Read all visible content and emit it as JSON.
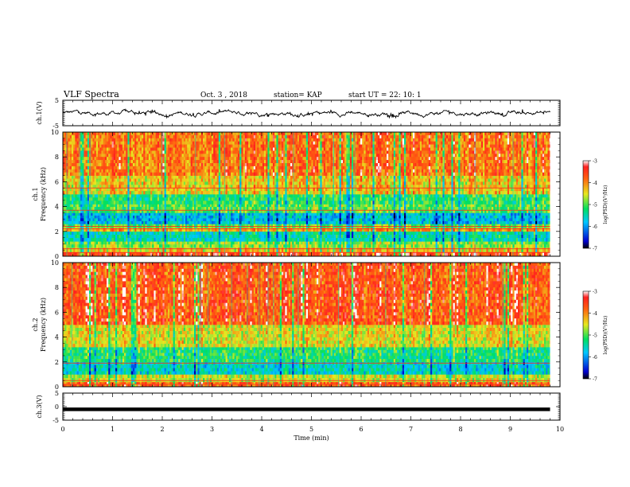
{
  "header": {
    "title": "VLF Spectra",
    "date": "Oct. 3 , 2018",
    "station": "station= KAP",
    "start": "start UT =  22: 10: 1"
  },
  "chart_data": [
    {
      "type": "line",
      "panel": "ch1-waveform",
      "ylabel": "ch.1(V)",
      "ylim": [
        -5,
        5
      ],
      "yticks": [
        "5",
        "-5"
      ],
      "xlim": [
        0,
        10
      ],
      "series": [
        {
          "values_range": [
            -1.8,
            1.5
          ],
          "mean": 0
        }
      ]
    },
    {
      "type": "heatmap",
      "panel": "ch1-spectrogram",
      "ylabel": "ch.1\nFrequency (kHz)",
      "ylabel_lines": [
        "ch.1",
        "Frequency (kHz)"
      ],
      "ylim": [
        0,
        10
      ],
      "yticks": [
        "0",
        "2",
        "4",
        "6",
        "8",
        "10"
      ],
      "xlim": [
        0,
        9.8
      ],
      "bands": [
        {
          "f0": 0.0,
          "f1": 0.35,
          "level": -3.6
        },
        {
          "f0": 0.35,
          "f1": 0.7,
          "level": -4.4
        },
        {
          "f0": 0.7,
          "f1": 1.2,
          "level": -4.8
        },
        {
          "f0": 1.2,
          "f1": 2.0,
          "level": -5.5
        },
        {
          "f0": 2.0,
          "f1": 2.3,
          "level": -4.2
        },
        {
          "f0": 2.3,
          "f1": 2.6,
          "level": -5.0
        },
        {
          "f0": 2.6,
          "f1": 3.5,
          "level": -5.8
        },
        {
          "f0": 3.5,
          "f1": 4.2,
          "level": -5.0
        },
        {
          "f0": 4.2,
          "f1": 5.0,
          "level": -5.2
        },
        {
          "f0": 5.0,
          "f1": 6.5,
          "level": -4.4
        },
        {
          "f0": 6.5,
          "f1": 10.0,
          "level": -3.9
        }
      ],
      "lines_kHz": [
        0.3,
        0.6,
        2.2,
        2.4,
        3.7,
        5.5
      ],
      "colorbar": {
        "min": -7,
        "max": -3,
        "ticks": [
          "-3",
          "-4",
          "-5",
          "-6",
          "-7"
        ],
        "label": "log(PSD)(V²/Hz)"
      }
    },
    {
      "type": "heatmap",
      "panel": "ch2-spectrogram",
      "ylabel": "ch.2\nFrequency (kHz)",
      "ylabel_lines": [
        "ch.2",
        "Frequency (kHz)"
      ],
      "ylim": [
        0,
        10
      ],
      "yticks": [
        "0",
        "2",
        "4",
        "6",
        "8",
        "10"
      ],
      "xlim": [
        0,
        9.8
      ],
      "bands": [
        {
          "f0": 0.0,
          "f1": 0.4,
          "level": -3.8
        },
        {
          "f0": 0.4,
          "f1": 1.0,
          "level": -4.6
        },
        {
          "f0": 1.0,
          "f1": 2.0,
          "level": -5.6
        },
        {
          "f0": 2.0,
          "f1": 3.2,
          "level": -5.2
        },
        {
          "f0": 3.2,
          "f1": 5.0,
          "level": -4.5
        },
        {
          "f0": 5.0,
          "f1": 10.0,
          "level": -3.7
        }
      ],
      "lines_kHz": [
        0.2,
        0.5,
        1.9
      ],
      "colorbar": {
        "min": -7,
        "max": -3,
        "ticks": [
          "-3",
          "-4",
          "-5",
          "-6",
          "-7"
        ],
        "label": "log(PSD)(V²/Hz)"
      }
    },
    {
      "type": "line",
      "panel": "ch3-waveform",
      "ylabel": "ch.3(V)",
      "ylim": [
        -5,
        5
      ],
      "yticks": [
        "5",
        "0",
        "-5"
      ],
      "xlim": [
        0,
        10
      ],
      "xlabel": "Time (min)",
      "xticks": [
        "0",
        "1",
        "2",
        "3",
        "4",
        "5",
        "6",
        "7",
        "8",
        "9",
        "10"
      ],
      "series": [
        {
          "values_range": [
            -1.2,
            -0.8
          ],
          "mean": -1.0
        }
      ]
    }
  ]
}
